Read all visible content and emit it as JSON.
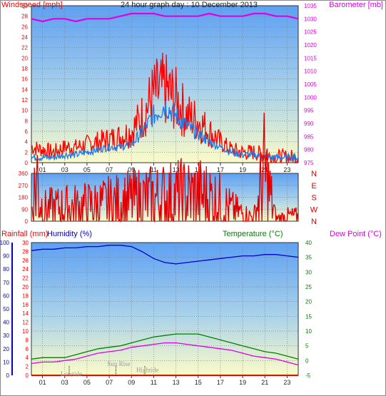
{
  "colors": {
    "wind": "#ff0000",
    "gust_avg": "#1e7be8",
    "barometer": "#e000e0",
    "rain": "#ff0000",
    "humidity": "#0000cc",
    "temperature": "#008000",
    "dewpoint": "#e000e0",
    "direction": "#e00000",
    "annotation": "#999999"
  },
  "chart_data": [
    {
      "type": "line",
      "title": "24 hour graph day : 10 December 2013",
      "x_ticks": [
        "01",
        "03",
        "05",
        "07",
        "09",
        "11",
        "13",
        "15",
        "17",
        "19",
        "21",
        "23"
      ],
      "left_axis": {
        "label": "Windspeed [mph]",
        "range": [
          0,
          30
        ],
        "ticks": [
          "0",
          "2",
          "4",
          "6",
          "8",
          "10",
          "12",
          "14",
          "16",
          "18",
          "20",
          "22",
          "24",
          "26",
          "28",
          "30"
        ]
      },
      "right_axis": {
        "label": "Barometer [mb]",
        "range": [
          975,
          1035
        ],
        "ticks": [
          "975",
          "980",
          "985",
          "990",
          "995",
          "1000",
          "1005",
          "1010",
          "1015",
          "1020",
          "1025",
          "1030",
          "1035"
        ]
      },
      "series": [
        {
          "name": "Windspeed",
          "axis": "left",
          "x": [
            0,
            1,
            2,
            3,
            4,
            5,
            6,
            7,
            8,
            9,
            10,
            11,
            12,
            13,
            14,
            15,
            16,
            17,
            18,
            19,
            20,
            21,
            22,
            23,
            24
          ],
          "values": [
            1,
            1,
            1,
            1.5,
            1.5,
            2,
            2.5,
            3,
            3,
            3.5,
            6,
            9,
            11,
            9,
            7,
            5.5,
            4,
            3,
            2,
            1.5,
            1.5,
            1,
            1,
            1,
            1
          ]
        },
        {
          "name": "Gust",
          "axis": "left",
          "x": [
            0,
            1,
            2,
            3,
            4,
            5,
            6,
            7,
            8,
            9,
            10,
            11,
            12,
            13,
            14,
            15,
            16,
            17,
            18,
            19,
            20,
            21,
            22,
            23,
            24
          ],
          "values": [
            3,
            2.5,
            2,
            3,
            3,
            3.5,
            4,
            4.5,
            5,
            6,
            9,
            13,
            14,
            12,
            9,
            8,
            6,
            4,
            2.5,
            2,
            2,
            1.5,
            1,
            1,
            1
          ]
        },
        {
          "name": "Barometer",
          "axis": "right",
          "x": [
            0,
            1,
            2,
            3,
            4,
            5,
            6,
            7,
            8,
            9,
            10,
            11,
            12,
            13,
            14,
            15,
            16,
            17,
            18,
            19,
            20,
            21,
            22,
            23,
            24
          ],
          "values": [
            1030,
            1029,
            1030,
            1030,
            1029,
            1030,
            1030,
            1030,
            1031,
            1032,
            1032,
            1032,
            1031,
            1031,
            1031,
            1031,
            1032,
            1031,
            1031,
            1031,
            1032,
            1032,
            1031,
            1031,
            1030
          ]
        }
      ]
    },
    {
      "type": "line",
      "left_axis": {
        "range": [
          0,
          360
        ],
        "ticks": [
          "0",
          "90",
          "180",
          "270",
          "360"
        ]
      },
      "right_axis": {
        "ticks": [
          "N",
          "W",
          "S",
          "E",
          "N"
        ]
      },
      "series": [
        {
          "name": "Wind direction",
          "x": [
            0,
            0.5,
            1,
            2,
            3,
            4,
            5,
            6,
            7,
            8,
            9,
            10,
            11,
            12,
            13,
            14,
            15,
            16,
            17,
            18,
            19,
            20,
            21,
            22,
            23,
            24
          ],
          "values": [
            80,
            330,
            90,
            100,
            105,
            110,
            115,
            120,
            130,
            140,
            150,
            160,
            165,
            175,
            180,
            185,
            190,
            175,
            140,
            90,
            60,
            30,
            340,
            20,
            40,
            40
          ]
        }
      ]
    },
    {
      "type": "line",
      "x_ticks": [
        "01",
        "03",
        "05",
        "07",
        "09",
        "11",
        "13",
        "15",
        "17",
        "19",
        "21",
        "23"
      ],
      "left_axis_1": {
        "label": "Rainfall (mm)",
        "range": [
          0,
          30
        ],
        "ticks": [
          "0",
          "2",
          "4",
          "6",
          "8",
          "10",
          "12",
          "14",
          "16",
          "18",
          "20",
          "22",
          "24",
          "26",
          "28",
          "30"
        ]
      },
      "left_axis_2": {
        "label": "Humidity (%)",
        "range": [
          0,
          100
        ],
        "ticks": [
          "0",
          "10",
          "20",
          "30",
          "40",
          "50",
          "60",
          "70",
          "80",
          "90",
          "100"
        ]
      },
      "right_axis": {
        "label_temp": "Temperature (°C)",
        "label_dew": "Dew Point (°C)",
        "range": [
          -5,
          40
        ],
        "ticks": [
          "-5",
          "0",
          "5",
          "10",
          "15",
          "20",
          "25",
          "30",
          "35",
          "40"
        ]
      },
      "annotations": [
        "Lowtide",
        "Sun Rise",
        "Hightide"
      ],
      "series": [
        {
          "name": "Humidity",
          "axis": "humidity",
          "x": [
            0,
            1,
            2,
            3,
            4,
            5,
            6,
            7,
            8,
            9,
            10,
            11,
            12,
            13,
            14,
            15,
            16,
            17,
            18,
            19,
            20,
            21,
            22,
            23,
            24
          ],
          "values": [
            94,
            95,
            95,
            96,
            96,
            97,
            97,
            98,
            98,
            97,
            93,
            88,
            85,
            84,
            85,
            86,
            87,
            88,
            89,
            90,
            90,
            91,
            91,
            90,
            89
          ]
        },
        {
          "name": "Temperature",
          "axis": "temperature",
          "x": [
            0,
            1,
            2,
            3,
            4,
            5,
            6,
            7,
            8,
            9,
            10,
            11,
            12,
            13,
            14,
            15,
            16,
            17,
            18,
            19,
            20,
            21,
            22,
            23,
            24
          ],
          "values": [
            0.5,
            1,
            1,
            1,
            2,
            3,
            4,
            4.5,
            5,
            6,
            7,
            8,
            8.5,
            9,
            9,
            9,
            8,
            7,
            6,
            5,
            4,
            3,
            2.5,
            1.5,
            0.5
          ]
        },
        {
          "name": "Dew Point",
          "axis": "temperature",
          "x": [
            0,
            1,
            2,
            3,
            4,
            5,
            6,
            7,
            8,
            9,
            10,
            11,
            12,
            13,
            14,
            15,
            16,
            17,
            18,
            19,
            20,
            21,
            22,
            23,
            24
          ],
          "values": [
            -1,
            -0.5,
            -0.5,
            0,
            0.5,
            1.5,
            2.5,
            3,
            3.5,
            4.5,
            5,
            5.5,
            6,
            6,
            5.5,
            5,
            4.5,
            4,
            3.5,
            2.5,
            1.5,
            1,
            0.5,
            -0.5,
            -1.5
          ]
        },
        {
          "name": "Rainfall",
          "axis": "rain",
          "x": [
            0,
            24
          ],
          "values": [
            0,
            0
          ]
        }
      ]
    }
  ]
}
